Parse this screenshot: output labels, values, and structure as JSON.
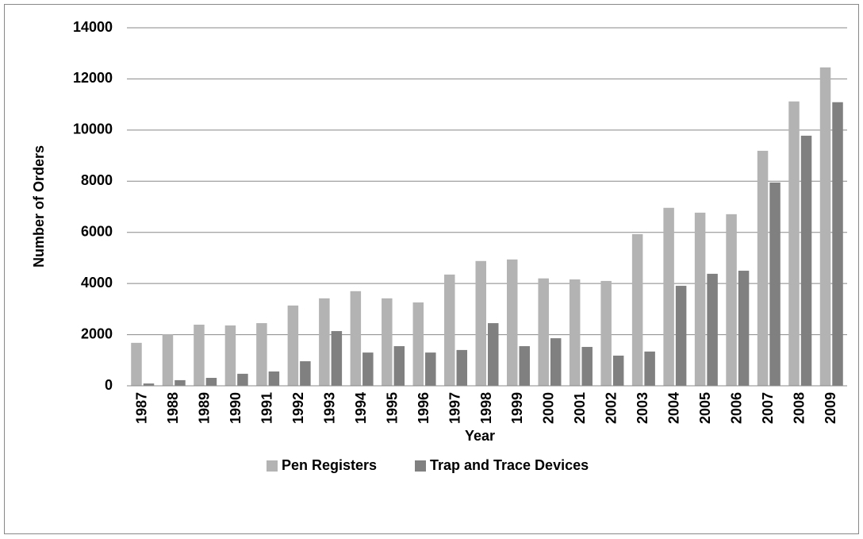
{
  "chart_data": {
    "type": "bar",
    "categories": [
      "1987",
      "1988",
      "1989",
      "1990",
      "1991",
      "1992",
      "1993",
      "1994",
      "1995",
      "1996",
      "1997",
      "1998",
      "1999",
      "2000",
      "2001",
      "2002",
      "2003",
      "2004",
      "2005",
      "2006",
      "2007",
      "2008",
      "2009"
    ],
    "series": [
      {
        "name": "Pen Registers",
        "color": "#b3b3b3",
        "values": [
          1680,
          2020,
          2390,
          2360,
          2450,
          3140,
          3420,
          3700,
          3420,
          3260,
          4350,
          4880,
          4940,
          4200,
          4160,
          4100,
          5930,
          6960,
          6770,
          6710,
          9190,
          11120,
          12450
        ]
      },
      {
        "name": "Trap and Trace Devices",
        "color": "#808080",
        "values": [
          90,
          220,
          310,
          470,
          560,
          960,
          2140,
          1300,
          1550,
          1300,
          1400,
          2450,
          1550,
          1860,
          1520,
          1180,
          1340,
          3910,
          4380,
          4500,
          7950,
          9780,
          11090
        ]
      }
    ],
    "xlabel": "Year",
    "ylabel": "Number of Orders",
    "ylim": [
      0,
      14000
    ],
    "yticks": [
      0,
      2000,
      4000,
      6000,
      8000,
      10000,
      12000,
      14000
    ],
    "grid": true,
    "legend": "bottom"
  }
}
